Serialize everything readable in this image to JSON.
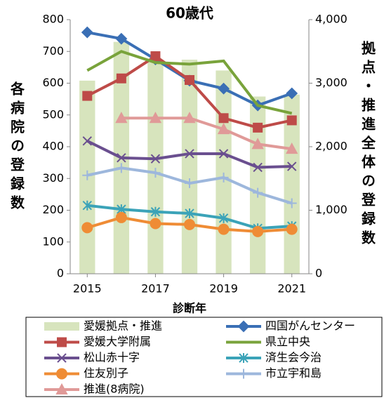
{
  "chart_data": {
    "type": "bar_line",
    "title": "60歳代",
    "xlabel": "診断年",
    "ylabel": "各病院の登録数",
    "y2label": "拠点・推進全体の登録数",
    "x": [
      2015,
      2016,
      2017,
      2018,
      2019,
      2020,
      2021
    ],
    "xlim": [
      2014.5,
      2021.5
    ],
    "xticks": [
      2015,
      2017,
      2019,
      2021
    ],
    "ylim": [
      0,
      800
    ],
    "yticks": [
      0,
      100,
      200,
      300,
      400,
      500,
      600,
      700,
      800
    ],
    "y2lim": [
      0,
      4000
    ],
    "y2ticks": [
      0,
      {
        "value": 1000,
        "label": "1,000"
      },
      {
        "value": 2000,
        "label": "2,000"
      },
      {
        "value": 3000,
        "label": "3,000"
      },
      {
        "value": 4000,
        "label": "4,000"
      }
    ],
    "grid": false,
    "legend": "bottom",
    "series": [
      {
        "name": "愛媛拠点・推進",
        "type": "bar",
        "axis": "y2",
        "color": "#d7e4bd",
        "values": [
          3040,
          3650,
          3370,
          3370,
          3200,
          2790,
          2820
        ]
      },
      {
        "name": "四国がんセンター",
        "type": "line",
        "marker": "diamond",
        "color": "#3a6fb5",
        "values": [
          760,
          740,
          675,
          608,
          583,
          530,
          568
        ]
      },
      {
        "name": "愛媛大学附属",
        "type": "line",
        "marker": "square",
        "color": "#be4b48",
        "values": [
          560,
          615,
          685,
          610,
          490,
          460,
          483
        ]
      },
      {
        "name": "県立中央",
        "type": "line",
        "marker": "none",
        "color": "#79a33b",
        "values": [
          640,
          700,
          665,
          660,
          670,
          530,
          505
        ]
      },
      {
        "name": "松山赤十字",
        "type": "line",
        "marker": "x",
        "color": "#6a4f8f",
        "values": [
          418,
          365,
          362,
          378,
          378,
          335,
          338
        ]
      },
      {
        "name": "済生会今治",
        "type": "line",
        "marker": "star",
        "color": "#3ba3b8",
        "values": [
          215,
          203,
          195,
          190,
          175,
          143,
          150
        ]
      },
      {
        "name": "住友別子",
        "type": "line",
        "marker": "circle",
        "color": "#ef8c35",
        "values": [
          145,
          177,
          158,
          155,
          140,
          133,
          140
        ]
      },
      {
        "name": "市立宇和島",
        "type": "line",
        "marker": "plus",
        "color": "#9db7dc",
        "values": [
          310,
          333,
          318,
          285,
          303,
          255,
          222
        ]
      },
      {
        "name": "推進(8病院)",
        "type": "line",
        "marker": "triangle",
        "color": "#e09a98",
        "values": [
          null,
          490,
          490,
          490,
          455,
          408,
          393
        ]
      }
    ]
  }
}
